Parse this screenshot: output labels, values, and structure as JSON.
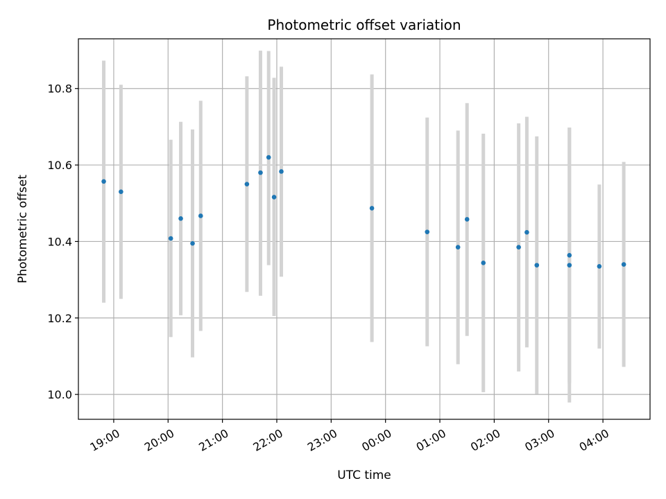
{
  "chart_data": {
    "type": "scatter",
    "title": "Photometric offset variation",
    "xlabel": "UTC time",
    "ylabel": "Photometric offset",
    "x_ticks": [
      "19:00",
      "20:00",
      "21:00",
      "22:00",
      "23:00",
      "00:00",
      "01:00",
      "02:00",
      "03:00",
      "04:00"
    ],
    "x_tick_values": [
      0,
      60,
      120,
      180,
      240,
      300,
      360,
      420,
      480,
      540
    ],
    "xlim": [
      -39,
      592
    ],
    "y_ticks": [
      "10.0",
      "10.2",
      "10.4",
      "10.6",
      "10.8"
    ],
    "y_tick_values": [
      10.0,
      10.2,
      10.4,
      10.6,
      10.8
    ],
    "ylim": [
      9.935,
      10.93
    ],
    "grid": true,
    "colors": {
      "point": "#1f77b4",
      "errorbar": "#d3d3d3",
      "grid": "#b0b0b0",
      "axes": "#000000"
    },
    "points": [
      {
        "x": "18:49",
        "y": 10.557,
        "ylow": 10.24,
        "yhigh": 10.873
      },
      {
        "x": "19:08",
        "y": 10.53,
        "ylow": 10.25,
        "yhigh": 10.81
      },
      {
        "x": "20:03",
        "y": 10.408,
        "ylow": 10.15,
        "yhigh": 10.666
      },
      {
        "x": "20:14",
        "y": 10.46,
        "ylow": 10.207,
        "yhigh": 10.713
      },
      {
        "x": "20:27",
        "y": 10.395,
        "ylow": 10.097,
        "yhigh": 10.693
      },
      {
        "x": "20:36",
        "y": 10.467,
        "ylow": 10.166,
        "yhigh": 10.768
      },
      {
        "x": "21:27",
        "y": 10.55,
        "ylow": 10.268,
        "yhigh": 10.832
      },
      {
        "x": "21:42",
        "y": 10.58,
        "ylow": 10.258,
        "yhigh": 10.899
      },
      {
        "x": "21:51",
        "y": 10.62,
        "ylow": 10.338,
        "yhigh": 10.898
      },
      {
        "x": "21:57",
        "y": 10.516,
        "ylow": 10.205,
        "yhigh": 10.828
      },
      {
        "x": "22:05",
        "y": 10.583,
        "ylow": 10.308,
        "yhigh": 10.857
      },
      {
        "x": "23:45",
        "y": 10.487,
        "ylow": 10.137,
        "yhigh": 10.837
      },
      {
        "x": "00:46",
        "y": 10.425,
        "ylow": 10.126,
        "yhigh": 10.724
      },
      {
        "x": "01:20",
        "y": 10.385,
        "ylow": 10.079,
        "yhigh": 10.69
      },
      {
        "x": "01:30",
        "y": 10.458,
        "ylow": 10.153,
        "yhigh": 10.762
      },
      {
        "x": "01:48",
        "y": 10.344,
        "ylow": 10.006,
        "yhigh": 10.682
      },
      {
        "x": "02:27",
        "y": 10.385,
        "ylow": 10.06,
        "yhigh": 10.709
      },
      {
        "x": "02:36",
        "y": 10.424,
        "ylow": 10.123,
        "yhigh": 10.726
      },
      {
        "x": "02:47",
        "y": 10.338,
        "ylow": 10.001,
        "yhigh": 10.675
      },
      {
        "x": "03:23",
        "y": 10.364,
        "ylow": 10.03,
        "yhigh": 10.698
      },
      {
        "x": "03:23",
        "y": 10.338,
        "ylow": 9.979,
        "yhigh": 10.698
      },
      {
        "x": "03:56",
        "y": 10.335,
        "ylow": 10.12,
        "yhigh": 10.549
      },
      {
        "x": "04:23",
        "y": 10.34,
        "ylow": 10.072,
        "yhigh": 10.608
      }
    ]
  }
}
